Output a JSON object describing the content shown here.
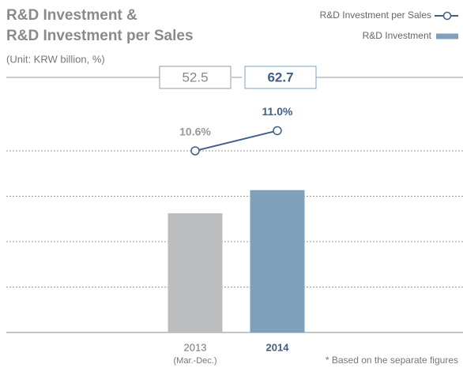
{
  "chart_data": {
    "type": "bar",
    "title": [
      "R&D Investment &",
      "R&D Investment per Sales"
    ],
    "subtitle": "(Unit: KRW billion, %)",
    "categories": [
      "2013",
      "2014"
    ],
    "category_notes": [
      "(Mar.-Dec.)",
      null
    ],
    "series": [
      {
        "name": "R&D Investment",
        "type": "bar",
        "color": "#7f9fbb",
        "colors": [
          "#bcbdbf",
          "#7f9fbb"
        ],
        "values": [
          52.5,
          62.7
        ]
      },
      {
        "name": "R&D Investment per Sales",
        "type": "line",
        "axis": "y2",
        "color": "#3f5f86",
        "values": [
          10.6,
          11.0
        ],
        "value_labels": [
          "10.6%",
          "11.0%"
        ]
      }
    ],
    "ylim": [
      0,
      100
    ],
    "yticks": [
      0,
      20,
      40,
      60,
      80
    ],
    "y2lim": [
      7,
      11.5
    ],
    "grid": true,
    "legend": "top-right",
    "footnote": "* Based on the separate figures"
  }
}
